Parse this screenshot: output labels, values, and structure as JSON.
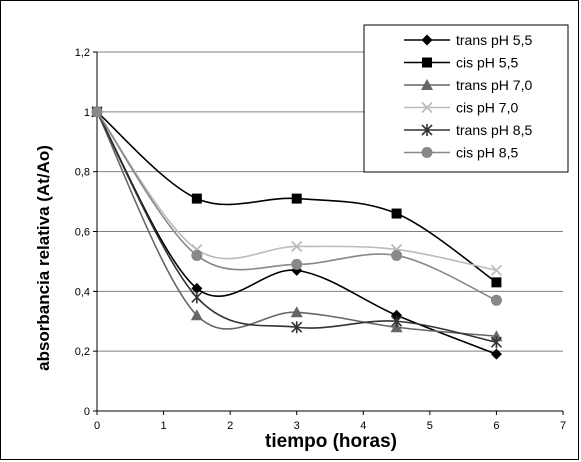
{
  "chart_data": {
    "type": "line",
    "xlabel": "tiempo (horas)",
    "ylabel": "absorbancia relativa (At/Ao)",
    "xlim": [
      0,
      7
    ],
    "ylim": [
      0,
      1.2
    ],
    "xticks": [
      "0",
      "1",
      "2",
      "3",
      "4",
      "5",
      "6",
      "7"
    ],
    "yticks": [
      "0",
      "0,2",
      "0,4",
      "0,6",
      "0,8",
      "1",
      "1,2"
    ],
    "grid": "horizontal",
    "legend_position": "top-right",
    "x": [
      0,
      1.5,
      3,
      4.5,
      6
    ],
    "series": [
      {
        "name": "trans pH 5,5",
        "marker": "diamond",
        "color": "#000000",
        "values": [
          1,
          0.41,
          0.47,
          0.32,
          0.19
        ]
      },
      {
        "name": "cis pH 5,5",
        "marker": "square",
        "color": "#000000",
        "values": [
          1,
          0.71,
          0.71,
          0.66,
          0.43
        ]
      },
      {
        "name": "trans pH 7,0",
        "marker": "triangle",
        "color": "#666666",
        "values": [
          1,
          0.32,
          0.33,
          0.28,
          0.25
        ]
      },
      {
        "name": "cis pH 7,0",
        "marker": "x",
        "color": "#bbbbbb",
        "values": [
          1,
          0.54,
          0.55,
          0.54,
          0.47
        ]
      },
      {
        "name": "trans pH 8,5",
        "marker": "star",
        "color": "#333333",
        "values": [
          1,
          0.38,
          0.28,
          0.3,
          0.23
        ]
      },
      {
        "name": "cis pH 8,5",
        "marker": "circle",
        "color": "#888888",
        "values": [
          1,
          0.52,
          0.49,
          0.52,
          0.37
        ]
      }
    ]
  }
}
